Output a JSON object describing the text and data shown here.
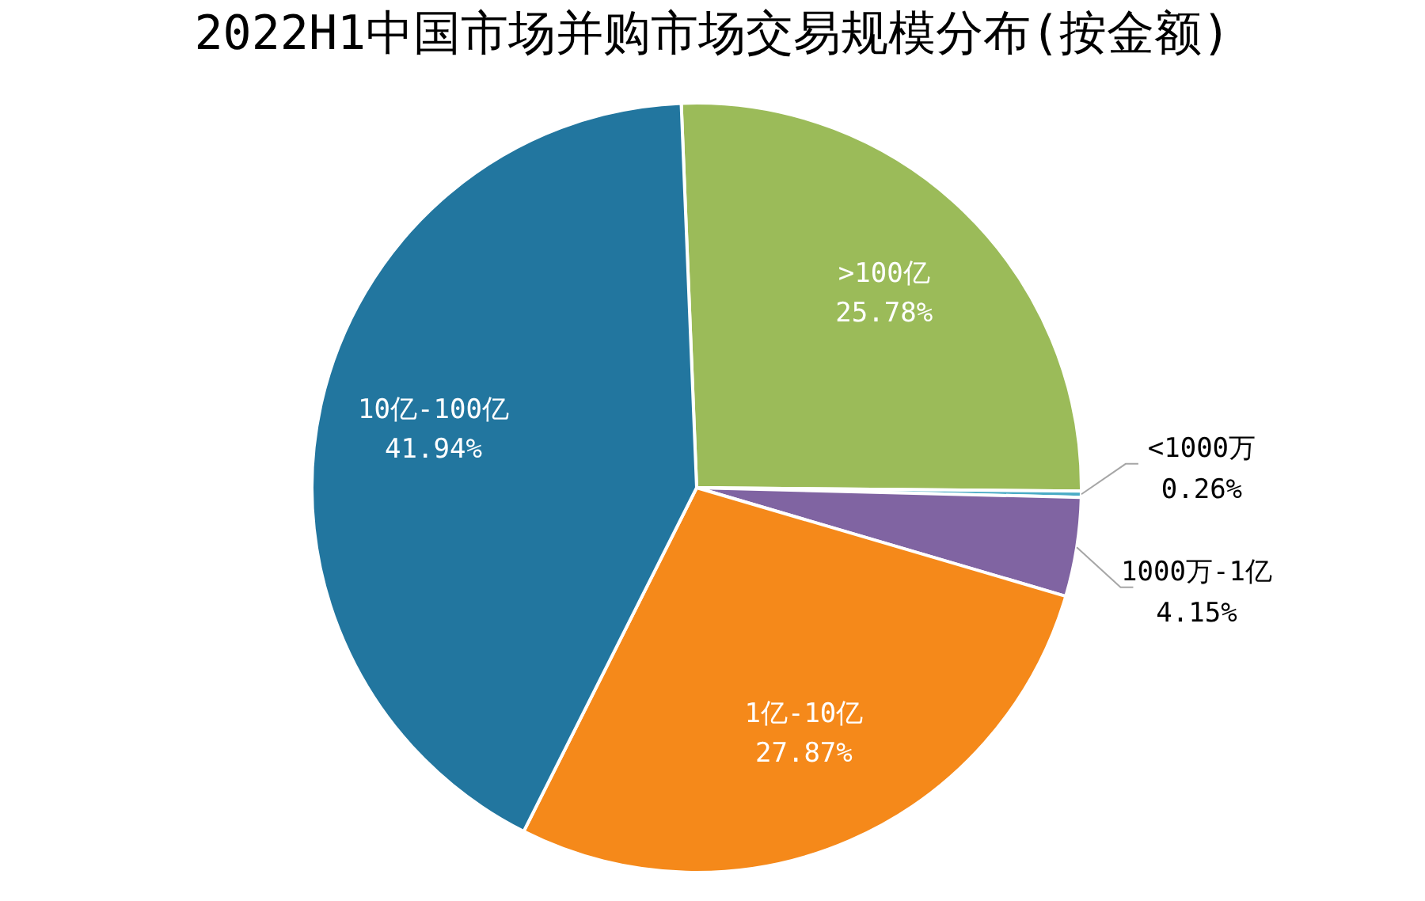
{
  "chart_data": {
    "type": "pie",
    "title": "2022H1中国市场并购市场交易规模分布(按金额)",
    "categories": [
      ">100亿",
      "<1000万",
      "1000万-1亿",
      "1亿-10亿",
      "10亿-100亿"
    ],
    "values": [
      25.78,
      0.26,
      4.15,
      27.87,
      41.94
    ],
    "colors": [
      "#9bbb59",
      "#4bacc6",
      "#8064a2",
      "#f5891a",
      "#22769f"
    ],
    "value_labels": [
      "25.78%",
      "0.26%",
      "4.15%",
      "27.87%",
      "41.94%"
    ],
    "legend": false
  }
}
